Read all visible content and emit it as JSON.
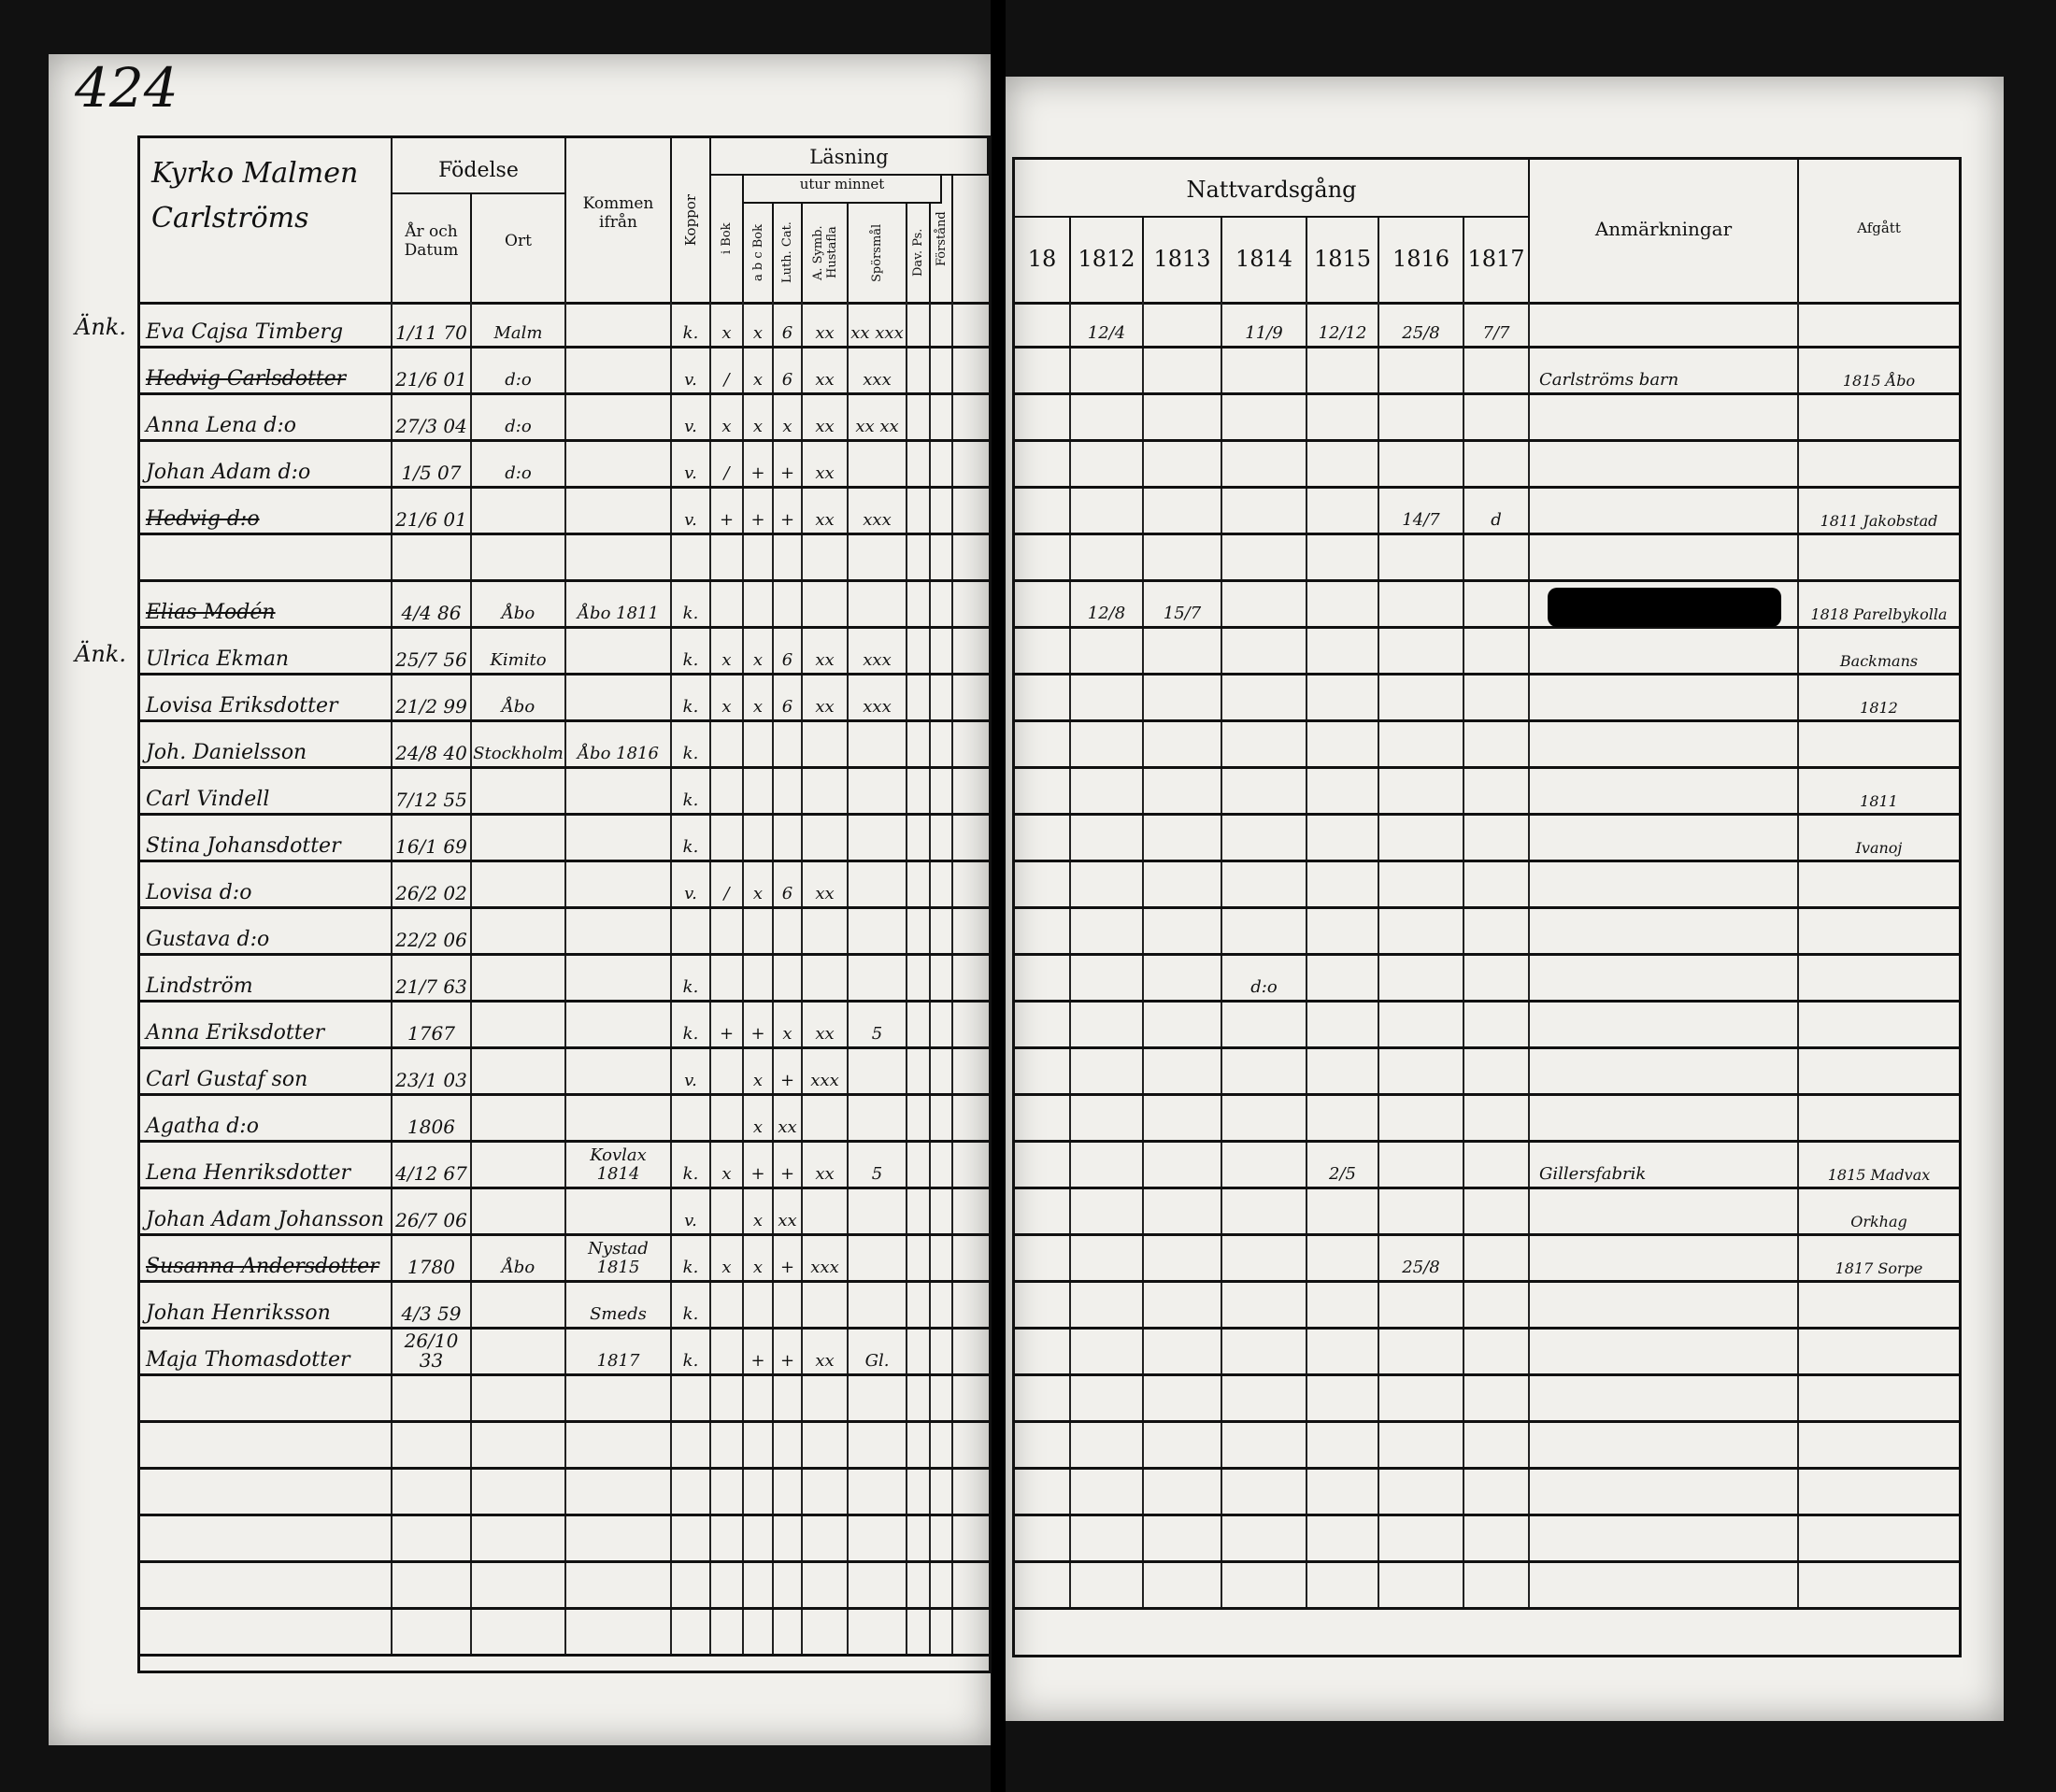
{
  "page_number": "424",
  "left": {
    "header": {
      "location": "Kyrko Malmen Carlströms",
      "birth": "Födelse",
      "birth_date": "År och Datum",
      "birth_place": "Ort",
      "came_from": "Kommen ifrån",
      "pox": "Koppor",
      "reading": "Läsning",
      "from_memory": "utur minnet",
      "cols": [
        "i Bok",
        "a b c Bok",
        "Luth. Cat.",
        "A. Symb. Hustafla",
        "Spörsmål",
        "Dav. Ps.",
        "Förstånd"
      ]
    },
    "rows": [
      {
        "margin": "Änk.",
        "name": "Eva Cajsa Timberg",
        "date": "1/11 70",
        "place": "Malm",
        "from": "",
        "pox": "k.",
        "marks": [
          "x",
          "x",
          "6",
          "xx",
          "xx xxx",
          "",
          ""
        ],
        "struck": false
      },
      {
        "margin": "",
        "name": "Hedvig Carlsdotter",
        "date": "21/6 01",
        "place": "d:o",
        "from": "",
        "pox": "v.",
        "marks": [
          "/",
          "x",
          "6",
          "xx",
          "xxx",
          "",
          ""
        ],
        "struck": true
      },
      {
        "margin": "",
        "name": "Anna Lena d:o",
        "date": "27/3 04",
        "place": "d:o",
        "from": "",
        "pox": "v.",
        "marks": [
          "x",
          "x",
          "x",
          "xx",
          "xx xx",
          "",
          ""
        ],
        "struck": false
      },
      {
        "margin": "",
        "name": "Johan Adam d:o",
        "date": "1/5 07",
        "place": "d:o",
        "from": "",
        "pox": "v.",
        "marks": [
          "/",
          "+",
          "+",
          "xx",
          "",
          "",
          ""
        ],
        "struck": false
      },
      {
        "margin": "",
        "name": "Hedvig d:o",
        "date": "21/6 01",
        "place": "",
        "from": "",
        "pox": "v.",
        "marks": [
          "+",
          "+",
          "+",
          "xx",
          "xxx",
          "",
          ""
        ],
        "struck": true
      },
      {
        "margin": "",
        "name": "",
        "date": "",
        "place": "",
        "from": "",
        "pox": "",
        "marks": [
          "",
          "",
          "",
          "",
          "",
          "",
          ""
        ],
        "struck": false
      },
      {
        "margin": "",
        "name": "Elias Modén",
        "date": "4/4 86",
        "place": "Åbo",
        "from": "Åbo 1811",
        "pox": "k.",
        "marks": [
          "",
          "",
          "",
          "",
          "",
          "",
          ""
        ],
        "struck": true
      },
      {
        "margin": "Änk.",
        "name": "Ulrica Ekman",
        "date": "25/7 56",
        "place": "Kimito",
        "from": "",
        "pox": "k.",
        "marks": [
          "x",
          "x",
          "6",
          "xx",
          "xxx",
          "",
          ""
        ],
        "struck": false
      },
      {
        "margin": "",
        "name": "Lovisa Eriksdotter",
        "date": "21/2 99",
        "place": "Åbo",
        "from": "",
        "pox": "k.",
        "marks": [
          "x",
          "x",
          "6",
          "xx",
          "xxx",
          "",
          ""
        ],
        "struck": false
      },
      {
        "margin": "",
        "name": "Joh. Danielsson",
        "date": "24/8 40",
        "place": "Stockholm",
        "from": "Åbo 1816",
        "pox": "k.",
        "marks": [
          "",
          "",
          "",
          "",
          "",
          "",
          ""
        ],
        "struck": false
      },
      {
        "margin": "",
        "name": "Carl Vindell",
        "date": "7/12 55",
        "place": "",
        "from": "",
        "pox": "k.",
        "marks": [
          "",
          "",
          "",
          "",
          "",
          "",
          ""
        ],
        "struck": false
      },
      {
        "margin": "",
        "name": "Stina Johansdotter",
        "date": "16/1 69",
        "place": "",
        "from": "",
        "pox": "k.",
        "marks": [
          "",
          "",
          "",
          "",
          "",
          "",
          ""
        ],
        "struck": false
      },
      {
        "margin": "",
        "name": "Lovisa d:o",
        "date": "26/2 02",
        "place": "",
        "from": "",
        "pox": "v.",
        "marks": [
          "/",
          "x",
          "6",
          "xx",
          "",
          "",
          ""
        ],
        "struck": false
      },
      {
        "margin": "",
        "name": "Gustava d:o",
        "date": "22/2 06",
        "place": "",
        "from": "",
        "pox": "",
        "marks": [
          "",
          "",
          "",
          "",
          "",
          "",
          ""
        ],
        "struck": false
      },
      {
        "margin": "",
        "name": "Lindström",
        "date": "21/7 63",
        "place": "",
        "from": "",
        "pox": "k.",
        "marks": [
          "",
          "",
          "",
          "",
          "",
          "",
          ""
        ],
        "struck": false
      },
      {
        "margin": "",
        "name": "Anna Eriksdotter",
        "date": "1767",
        "place": "",
        "from": "",
        "pox": "k.",
        "marks": [
          "+",
          "+",
          "x",
          "xx",
          "5",
          "",
          ""
        ],
        "struck": false
      },
      {
        "margin": "",
        "name": "Carl Gustaf son",
        "date": "23/1 03",
        "place": "",
        "from": "",
        "pox": "v.",
        "marks": [
          "",
          "x",
          "+",
          "xxx",
          "",
          "",
          ""
        ],
        "struck": false
      },
      {
        "margin": "",
        "name": "Agatha d:o",
        "date": "1806",
        "place": "",
        "from": "",
        "pox": "",
        "marks": [
          "",
          "x",
          "xx",
          "",
          "",
          "",
          ""
        ],
        "struck": false
      },
      {
        "margin": "",
        "name": "Lena Henriksdotter",
        "date": "4/12 67",
        "place": "",
        "from": "Kovlax 1814",
        "pox": "k.",
        "marks": [
          "x",
          "+",
          "+",
          "xx",
          "5",
          "",
          ""
        ],
        "struck": false
      },
      {
        "margin": "",
        "name": "Johan Adam Johansson",
        "date": "26/7 06",
        "place": "",
        "from": "",
        "pox": "v.",
        "marks": [
          "",
          "x",
          "xx",
          "",
          "",
          "",
          ""
        ],
        "struck": false
      },
      {
        "margin": "",
        "name": "Susanna Andersdotter",
        "date": "1780",
        "place": "Åbo",
        "from": "Nystad 1815",
        "pox": "k.",
        "marks": [
          "x",
          "x",
          "+",
          "xxx",
          "",
          "",
          ""
        ],
        "struck": true
      },
      {
        "margin": "",
        "name": "Johan Henriksson",
        "date": "4/3 59",
        "place": "",
        "from": "Smeds",
        "pox": "k.",
        "marks": [
          "",
          "",
          "",
          "",
          "",
          "",
          ""
        ],
        "struck": false
      },
      {
        "margin": "",
        "name": "Maja Thomasdotter",
        "date": "26/10 33",
        "place": "",
        "from": "1817",
        "pox": "k.",
        "marks": [
          "",
          "+",
          "+",
          "xx",
          "Gl.",
          "",
          ""
        ],
        "struck": false
      }
    ]
  },
  "right": {
    "header": {
      "communion": "Nattvardsgång",
      "years": [
        "18",
        "1812",
        "1813",
        "1814",
        "1815",
        "1816",
        "1817"
      ],
      "remarks": "Anmärkningar",
      "departed": "Afgått"
    },
    "rows": [
      {
        "years": [
          "",
          "12/4",
          "",
          "11/9",
          "12/12",
          "25/8",
          "7/7"
        ],
        "remarks": "",
        "departed": ""
      },
      {
        "years": [
          "",
          "",
          "",
          "",
          "",
          "",
          ""
        ],
        "remarks": "Carlströms barn",
        "departed": "1815 Åbo"
      },
      {
        "years": [
          "",
          "",
          "",
          "",
          "",
          "",
          ""
        ],
        "remarks": "",
        "departed": ""
      },
      {
        "years": [
          "",
          "",
          "",
          "",
          "",
          "",
          ""
        ],
        "remarks": "",
        "departed": ""
      },
      {
        "years": [
          "",
          "",
          "",
          "",
          "",
          "14/7",
          "d"
        ],
        "remarks": "",
        "departed": "1811 Jakobstad"
      },
      {
        "years": [
          "",
          "",
          "",
          "",
          "",
          "",
          ""
        ],
        "remarks": "",
        "departed": ""
      },
      {
        "years": [
          "",
          "12/8",
          "15/7",
          "",
          "",
          "",
          ""
        ],
        "remarks": "",
        "departed": "1818 Parelbykolla"
      },
      {
        "years": [
          "",
          "",
          "",
          "",
          "",
          "",
          ""
        ],
        "remarks": "",
        "departed": "Backmans"
      },
      {
        "years": [
          "",
          "",
          "",
          "",
          "",
          "",
          ""
        ],
        "remarks": "",
        "departed": "1812"
      },
      {
        "years": [
          "",
          "",
          "",
          "",
          "",
          "",
          ""
        ],
        "remarks": "",
        "departed": ""
      },
      {
        "years": [
          "",
          "",
          "",
          "",
          "",
          "",
          ""
        ],
        "remarks": "",
        "departed": "1811"
      },
      {
        "years": [
          "",
          "",
          "",
          "",
          "",
          "",
          ""
        ],
        "remarks": "",
        "departed": "Ivanoj"
      },
      {
        "years": [
          "",
          "",
          "",
          "",
          "",
          "",
          ""
        ],
        "remarks": "",
        "departed": ""
      },
      {
        "years": [
          "",
          "",
          "",
          "",
          "",
          "",
          ""
        ],
        "remarks": "",
        "departed": ""
      },
      {
        "years": [
          "",
          "",
          "",
          "d:o",
          "",
          "",
          ""
        ],
        "remarks": "",
        "departed": ""
      },
      {
        "years": [
          "",
          "",
          "",
          "",
          "",
          "",
          ""
        ],
        "remarks": "",
        "departed": ""
      },
      {
        "years": [
          "",
          "",
          "",
          "",
          "",
          "",
          ""
        ],
        "remarks": "",
        "departed": ""
      },
      {
        "years": [
          "",
          "",
          "",
          "",
          "",
          "",
          ""
        ],
        "remarks": "",
        "departed": ""
      },
      {
        "years": [
          "",
          "",
          "",
          "",
          "2/5",
          "",
          ""
        ],
        "remarks": "Gillersfabrik",
        "departed": "1815 Madvax"
      },
      {
        "years": [
          "",
          "",
          "",
          "",
          "",
          "",
          ""
        ],
        "remarks": "",
        "departed": "Orkhag"
      },
      {
        "years": [
          "",
          "",
          "",
          "",
          "",
          "25/8",
          ""
        ],
        "remarks": "",
        "departed": "1817 Sorpe"
      },
      {
        "years": [
          "",
          "",
          "",
          "",
          "",
          "",
          ""
        ],
        "remarks": "",
        "departed": ""
      },
      {
        "years": [
          "",
          "",
          "",
          "",
          "",
          "",
          ""
        ],
        "remarks": "",
        "departed": ""
      }
    ]
  }
}
